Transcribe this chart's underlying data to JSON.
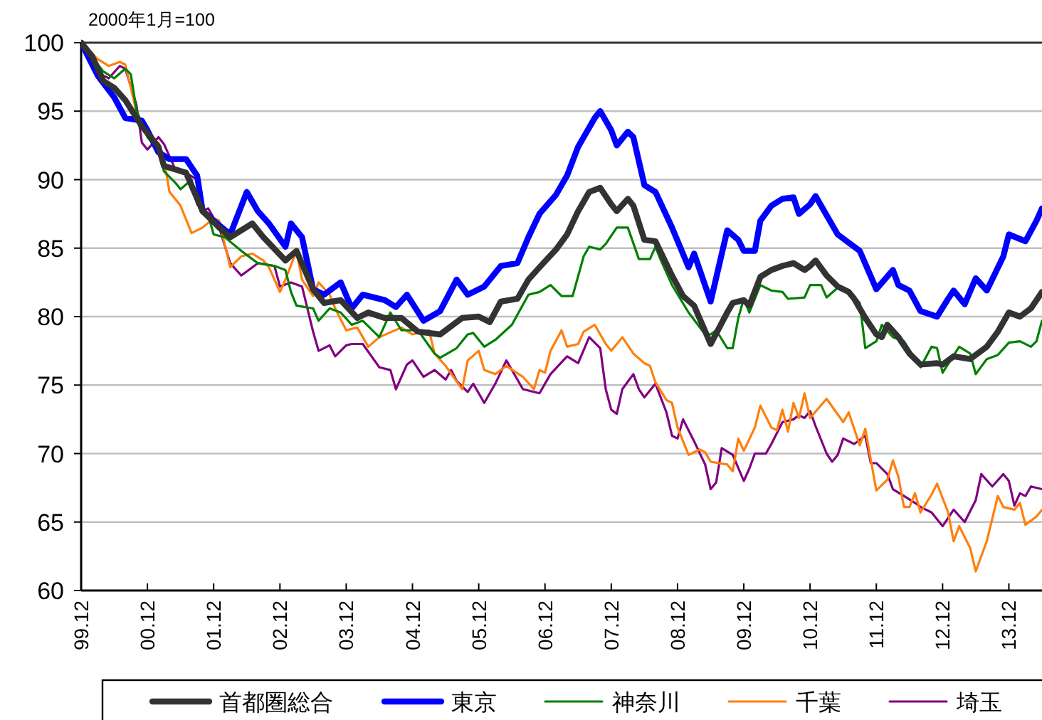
{
  "chart_data": {
    "type": "line",
    "annotations": [
      "2000年1月=100"
    ],
    "xlim": [
      "1999-12",
      "2014-06"
    ],
    "xticks": [
      {
        "value": "1999-12",
        "label": "99.12"
      },
      {
        "value": "2000-12",
        "label": "00.12"
      },
      {
        "value": "2001-12",
        "label": "01.12"
      },
      {
        "value": "2002-12",
        "label": "02.12"
      },
      {
        "value": "2003-12",
        "label": "03.12"
      },
      {
        "value": "2004-12",
        "label": "04.12"
      },
      {
        "value": "2005-12",
        "label": "05.12"
      },
      {
        "value": "2006-12",
        "label": "06.12"
      },
      {
        "value": "2007-12",
        "label": "07.12"
      },
      {
        "value": "2008-12",
        "label": "08.12"
      },
      {
        "value": "2009-12",
        "label": "09.12"
      },
      {
        "value": "2010-12",
        "label": "10.12"
      },
      {
        "value": "2011-12",
        "label": "11.12"
      },
      {
        "value": "2012-12",
        "label": "12.12"
      },
      {
        "value": "2013-12",
        "label": "13.12"
      }
    ],
    "ylim": [
      60,
      100
    ],
    "yticks": [
      60,
      65,
      70,
      75,
      80,
      85,
      90,
      95,
      100
    ],
    "grid": "y",
    "legend": "bottom",
    "marker": "none",
    "line_style": "solid",
    "series": [
      {
        "name": "首都圏総合",
        "color": "#333333",
        "x": [
          "1999-12",
          "2000-02",
          "2000-04",
          "2000-06",
          "2000-08",
          "2000-11",
          "2001-02",
          "2001-03",
          "2001-07",
          "2001-10",
          "2002-01",
          "2002-03",
          "2002-07",
          "2002-09",
          "2003-01",
          "2003-03",
          "2003-06",
          "2003-08",
          "2003-11",
          "2004-02",
          "2004-04",
          "2004-07",
          "2004-10",
          "2005-01",
          "2005-05",
          "2005-09",
          "2005-12",
          "2006-02",
          "2006-04",
          "2006-07",
          "2006-09",
          "2006-11",
          "2007-02",
          "2007-04",
          "2007-06",
          "2007-08",
          "2007-10",
          "2007-12",
          "2008-01",
          "2008-03",
          "2008-04",
          "2008-06",
          "2008-08",
          "2008-11",
          "2009-01",
          "2009-03",
          "2009-06",
          "2009-09",
          "2009-10",
          "2009-12",
          "2010-01",
          "2010-03",
          "2010-05",
          "2010-07",
          "2010-09",
          "2010-11",
          "2010-12",
          "2011-01",
          "2011-03",
          "2011-05",
          "2011-07",
          "2011-08",
          "2011-10",
          "2011-12",
          "2012-01",
          "2012-02",
          "2012-04",
          "2012-06",
          "2012-08",
          "2012-11",
          "2012-12",
          "2013-02",
          "2013-05",
          "2013-08",
          "2013-10",
          "2013-12",
          "2014-02",
          "2014-04",
          "2014-06"
        ],
        "values": [
          100,
          99.0,
          97.2,
          96.7,
          95.8,
          93.9,
          92.4,
          91.0,
          90.5,
          87.7,
          86.5,
          85.8,
          86.8,
          85.8,
          84.1,
          84.8,
          82.0,
          81.0,
          81.2,
          79.9,
          80.3,
          79.9,
          79.9,
          78.9,
          78.7,
          79.9,
          80.0,
          79.6,
          81.1,
          81.3,
          82.7,
          83.6,
          84.9,
          86.0,
          87.7,
          89.1,
          89.4,
          88.2,
          87.7,
          88.6,
          88.1,
          85.6,
          85.5,
          83.0,
          81.5,
          80.8,
          78.0,
          80.3,
          81.0,
          81.2,
          80.8,
          82.9,
          83.4,
          83.7,
          83.9,
          83.4,
          83.7,
          84.1,
          83.0,
          82.2,
          81.8,
          81.3,
          79.9,
          78.7,
          78.5,
          79.4,
          78.5,
          77.3,
          76.5,
          76.6,
          76.5,
          77.1,
          76.9,
          77.8,
          78.9,
          80.3,
          80.0,
          80.6,
          81.8
        ]
      },
      {
        "name": "東京",
        "color": "#0000ff",
        "x": [
          "1999-12",
          "2000-03",
          "2000-06",
          "2000-08",
          "2000-11",
          "2000-12",
          "2001-02",
          "2001-04",
          "2001-07",
          "2001-09",
          "2001-10",
          "2001-12",
          "2002-03",
          "2002-06",
          "2002-08",
          "2002-10",
          "2003-01",
          "2003-02",
          "2003-04",
          "2003-06",
          "2003-08",
          "2003-11",
          "2004-01",
          "2004-03",
          "2004-07",
          "2004-09",
          "2004-11",
          "2005-02",
          "2005-05",
          "2005-08",
          "2005-10",
          "2006-01",
          "2006-04",
          "2006-07",
          "2006-09",
          "2006-11",
          "2007-02",
          "2007-04",
          "2007-06",
          "2007-09",
          "2007-10",
          "2007-12",
          "2008-01",
          "2008-03",
          "2008-04",
          "2008-06",
          "2008-08",
          "2008-11",
          "2009-02",
          "2009-03",
          "2009-06",
          "2009-09",
          "2009-11",
          "2009-12",
          "2010-02",
          "2010-03",
          "2010-05",
          "2010-07",
          "2010-09",
          "2010-10",
          "2010-12",
          "2011-01",
          "2011-03",
          "2011-05",
          "2011-07",
          "2011-09",
          "2011-12",
          "2012-03",
          "2012-04",
          "2012-06",
          "2012-08",
          "2012-11",
          "2013-01",
          "2013-02",
          "2013-04",
          "2013-06",
          "2013-08",
          "2013-11",
          "2013-12",
          "2014-03",
          "2014-05",
          "2014-06"
        ],
        "values": [
          100,
          97.6,
          96.0,
          94.5,
          94.3,
          93.6,
          92.0,
          91.5,
          91.5,
          90.3,
          87.7,
          87.0,
          86.0,
          89.1,
          87.7,
          86.8,
          85.1,
          86.8,
          85.8,
          82.0,
          81.6,
          82.5,
          80.6,
          81.6,
          81.2,
          80.7,
          81.6,
          79.7,
          80.4,
          82.7,
          81.6,
          82.2,
          83.7,
          83.9,
          85.8,
          87.5,
          88.9,
          90.3,
          92.4,
          94.5,
          95.0,
          93.6,
          92.5,
          93.5,
          93.1,
          89.6,
          89.1,
          86.5,
          83.6,
          84.6,
          81.1,
          86.3,
          85.6,
          84.8,
          84.8,
          87.0,
          88.1,
          88.6,
          88.7,
          87.5,
          88.2,
          88.8,
          87.4,
          86.0,
          85.4,
          84.8,
          82.0,
          83.4,
          82.3,
          81.9,
          80.4,
          80.0,
          81.3,
          81.9,
          80.9,
          82.8,
          81.9,
          84.4,
          86.0,
          85.5,
          87.0,
          87.9
        ]
      },
      {
        "name": "神奈川",
        "color": "#008000",
        "x": [
          "1999-12",
          "2000-04",
          "2000-06",
          "2000-08",
          "2000-09",
          "2000-10",
          "2000-12",
          "2001-02",
          "2001-03",
          "2001-05",
          "2001-06",
          "2001-08",
          "2001-09",
          "2001-11",
          "2001-12",
          "2002-02",
          "2002-05",
          "2002-08",
          "2002-11",
          "2003-01",
          "2003-02",
          "2003-03",
          "2003-06",
          "2003-07",
          "2003-09",
          "2003-11",
          "2004-01",
          "2004-03",
          "2004-06",
          "2004-08",
          "2004-10",
          "2005-01",
          "2005-04",
          "2005-05",
          "2005-08",
          "2005-10",
          "2005-11",
          "2006-01",
          "2006-03",
          "2006-06",
          "2006-09",
          "2006-11",
          "2007-01",
          "2007-03",
          "2007-05",
          "2007-07",
          "2007-08",
          "2007-10",
          "2007-11",
          "2008-01",
          "2008-03",
          "2008-05",
          "2008-07",
          "2008-08",
          "2008-09",
          "2008-11",
          "2009-02",
          "2009-05",
          "2009-06",
          "2009-07",
          "2009-09",
          "2009-10",
          "2009-11",
          "2009-12",
          "2010-01",
          "2010-03",
          "2010-05",
          "2010-07",
          "2010-08",
          "2010-11",
          "2010-12",
          "2011-02",
          "2011-03",
          "2011-05",
          "2011-07",
          "2011-09",
          "2011-10",
          "2011-12",
          "2012-01",
          "2012-03",
          "2012-05",
          "2012-08",
          "2012-10",
          "2012-11",
          "2012-12",
          "2013-03",
          "2013-05",
          "2013-06",
          "2013-08",
          "2013-10",
          "2013-12",
          "2014-02",
          "2014-04",
          "2014-05",
          "2014-06"
        ],
        "values": [
          100,
          97.9,
          97.4,
          98.1,
          97.7,
          95.1,
          93.1,
          92.2,
          90.6,
          89.8,
          89.3,
          90.0,
          88.2,
          87.4,
          86.0,
          85.8,
          84.8,
          83.9,
          83.7,
          83.4,
          81.8,
          80.8,
          80.6,
          79.7,
          80.6,
          80.3,
          79.4,
          79.7,
          78.5,
          80.3,
          79.0,
          79.0,
          77.3,
          77.0,
          77.7,
          78.7,
          78.8,
          77.8,
          78.3,
          79.4,
          81.6,
          81.8,
          82.3,
          81.5,
          81.5,
          84.4,
          85.1,
          84.9,
          85.3,
          86.5,
          86.5,
          84.2,
          84.2,
          85.1,
          84.1,
          82.3,
          80.3,
          78.7,
          78.7,
          79.0,
          77.7,
          77.7,
          79.9,
          81.3,
          80.3,
          82.3,
          81.9,
          81.8,
          81.3,
          81.4,
          82.3,
          82.3,
          81.4,
          82.1,
          81.9,
          81.0,
          77.7,
          78.2,
          79.4,
          78.5,
          78.2,
          76.3,
          77.8,
          77.7,
          75.9,
          77.8,
          77.3,
          75.8,
          76.9,
          77.2,
          78.1,
          78.2,
          77.8,
          78.2,
          79.7
        ]
      },
      {
        "name": "千葉",
        "color": "#ff7f0e",
        "x": [
          "1999-12",
          "2000-03",
          "2000-05",
          "2000-07",
          "2000-08",
          "2000-10",
          "2000-12",
          "2001-02",
          "2001-03",
          "2001-04",
          "2001-06",
          "2001-08",
          "2001-10",
          "2001-12",
          "2002-01",
          "2002-03",
          "2002-05",
          "2002-07",
          "2002-09",
          "2002-10",
          "2002-12",
          "2003-01",
          "2003-03",
          "2003-04",
          "2003-06",
          "2003-07",
          "2003-09",
          "2003-10",
          "2003-12",
          "2004-02",
          "2004-04",
          "2004-06",
          "2004-10",
          "2004-12",
          "2005-03",
          "2005-04",
          "2005-06",
          "2005-09",
          "2005-10",
          "2005-12",
          "2006-01",
          "2006-03",
          "2006-05",
          "2006-08",
          "2006-10",
          "2006-11",
          "2006-12",
          "2007-01",
          "2007-03",
          "2007-04",
          "2007-06",
          "2007-07",
          "2007-09",
          "2007-11",
          "2007-12",
          "2008-02",
          "2008-04",
          "2008-06",
          "2008-07",
          "2008-08",
          "2008-10",
          "2008-11",
          "2008-12",
          "2009-02",
          "2009-04",
          "2009-05",
          "2009-06",
          "2009-09",
          "2009-10",
          "2009-11",
          "2009-12",
          "2010-02",
          "2010-03",
          "2010-05",
          "2010-06",
          "2010-07",
          "2010-08",
          "2010-09",
          "2010-10",
          "2010-11",
          "2010-12",
          "2011-03",
          "2011-06",
          "2011-07",
          "2011-09",
          "2011-10",
          "2011-12",
          "2012-02",
          "2012-03",
          "2012-04",
          "2012-05",
          "2012-06",
          "2012-07",
          "2012-08",
          "2012-10",
          "2012-11",
          "2013-01",
          "2013-02",
          "2013-03",
          "2013-05",
          "2013-06",
          "2013-08",
          "2013-10",
          "2013-11",
          "2014-01",
          "2014-02",
          "2014-03",
          "2014-05",
          "2014-06"
        ],
        "values": [
          100,
          98.8,
          98.3,
          98.6,
          98.4,
          95.0,
          93.2,
          92.7,
          91.5,
          89.1,
          88.1,
          86.1,
          86.5,
          87.2,
          87.0,
          83.6,
          84.4,
          84.6,
          84.1,
          83.6,
          81.8,
          82.7,
          84.8,
          82.7,
          81.5,
          82.5,
          81.6,
          80.6,
          79.0,
          79.2,
          77.8,
          78.5,
          79.2,
          78.7,
          79.0,
          77.3,
          76.4,
          74.7,
          76.8,
          77.5,
          76.1,
          75.8,
          76.4,
          75.6,
          74.7,
          76.1,
          75.9,
          77.5,
          79.0,
          77.8,
          78.0,
          78.9,
          79.4,
          78.0,
          77.5,
          78.5,
          77.3,
          76.6,
          76.4,
          75.2,
          73.9,
          73.7,
          71.9,
          69.9,
          70.3,
          70.1,
          69.4,
          69.2,
          68.7,
          71.1,
          70.2,
          71.9,
          73.5,
          71.9,
          71.7,
          73.2,
          71.6,
          73.7,
          72.6,
          74.4,
          72.6,
          74.0,
          72.3,
          73.0,
          70.6,
          71.8,
          67.3,
          68.1,
          69.5,
          68.3,
          66.1,
          66.1,
          67.1,
          65.7,
          67.0,
          67.8,
          65.7,
          63.6,
          64.7,
          63.1,
          61.4,
          63.6,
          66.9,
          66.1,
          65.9,
          66.4,
          64.8,
          65.4,
          65.9
        ]
      },
      {
        "name": "埼玉",
        "color": "#800080",
        "x": [
          "1999-12",
          "2000-04",
          "2000-05",
          "2000-07",
          "2000-08",
          "2000-10",
          "2000-11",
          "2000-12",
          "2001-02",
          "2001-03",
          "2001-05",
          "2001-07",
          "2001-09",
          "2001-10",
          "2001-11",
          "2002-01",
          "2002-03",
          "2002-05",
          "2002-07",
          "2002-08",
          "2002-11",
          "2002-12",
          "2003-02",
          "2003-04",
          "2003-06",
          "2003-07",
          "2003-09",
          "2003-10",
          "2003-12",
          "2004-01",
          "2004-03",
          "2004-06",
          "2004-08",
          "2004-09",
          "2004-11",
          "2004-12",
          "2005-02",
          "2005-04",
          "2005-06",
          "2005-07",
          "2005-08",
          "2005-10",
          "2005-11",
          "2006-01",
          "2006-03",
          "2006-05",
          "2006-07",
          "2006-08",
          "2006-11",
          "2007-01",
          "2007-04",
          "2007-06",
          "2007-08",
          "2007-10",
          "2007-11",
          "2007-12",
          "2008-01",
          "2008-02",
          "2008-04",
          "2008-05",
          "2008-06",
          "2008-08",
          "2008-10",
          "2008-11",
          "2008-12",
          "2009-01",
          "2009-03",
          "2009-05",
          "2009-06",
          "2009-07",
          "2009-08",
          "2009-10",
          "2009-12",
          "2010-01",
          "2010-02",
          "2010-04",
          "2010-05",
          "2010-07",
          "2010-09",
          "2010-10",
          "2010-11",
          "2010-12",
          "2011-01",
          "2011-03",
          "2011-04",
          "2011-05",
          "2011-06",
          "2011-08",
          "2011-10",
          "2011-11",
          "2011-12",
          "2012-02",
          "2012-03",
          "2012-05",
          "2012-07",
          "2012-08",
          "2012-10",
          "2012-12",
          "2013-02",
          "2013-04",
          "2013-06",
          "2013-07",
          "2013-09",
          "2013-11",
          "2013-12",
          "2014-01",
          "2014-02",
          "2014-03",
          "2014-04",
          "2014-06"
        ],
        "values": [
          100,
          97.6,
          97.4,
          98.3,
          98.1,
          95.5,
          92.7,
          92.2,
          93.1,
          92.6,
          90.8,
          90.5,
          90.0,
          87.7,
          87.9,
          86.5,
          83.9,
          83.0,
          83.6,
          83.9,
          83.7,
          82.2,
          82.5,
          82.2,
          78.9,
          77.5,
          77.9,
          77.1,
          77.9,
          78.0,
          78.0,
          76.3,
          76.1,
          74.7,
          76.5,
          76.8,
          75.6,
          76.1,
          75.4,
          76.1,
          75.3,
          74.5,
          75.1,
          73.7,
          75.1,
          76.8,
          75.4,
          74.7,
          74.4,
          75.8,
          77.1,
          76.6,
          78.5,
          77.7,
          74.7,
          73.2,
          72.9,
          74.7,
          75.8,
          74.7,
          74.1,
          75.1,
          73.0,
          71.3,
          71.1,
          72.5,
          70.9,
          69.2,
          67.4,
          67.9,
          70.4,
          69.9,
          68.0,
          68.9,
          70.0,
          70.0,
          70.7,
          72.3,
          72.5,
          72.8,
          72.6,
          73.1,
          72.0,
          70.0,
          69.4,
          69.9,
          71.1,
          70.7,
          71.3,
          69.3,
          69.3,
          68.5,
          67.4,
          66.9,
          66.4,
          66.1,
          65.7,
          64.7,
          65.9,
          65.0,
          66.6,
          68.5,
          67.6,
          68.5,
          68.0,
          66.2,
          67.1,
          66.9,
          67.6,
          67.4
        ]
      }
    ]
  }
}
